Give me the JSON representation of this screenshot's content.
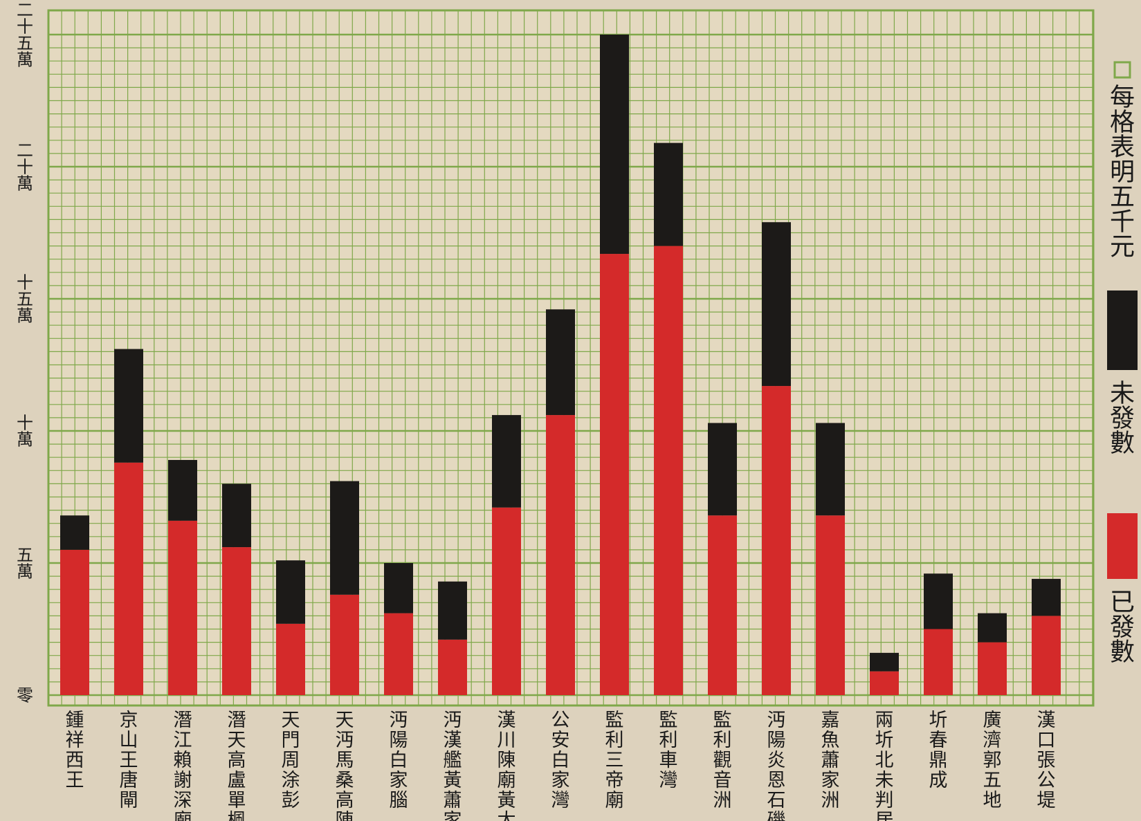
{
  "chart_data": {
    "type": "bar",
    "stacked": true,
    "orientation": "vertical",
    "title": "",
    "xlabel": "",
    "ylabel": "",
    "ylim": [
      0,
      250000
    ],
    "grid": true,
    "y_tick_values": [
      0,
      50000,
      100000,
      150000,
      200000,
      250000
    ],
    "y_tick_labels": [
      "零",
      "五萬",
      "十萬",
      "十五萬",
      "二十萬",
      "二十五萬"
    ],
    "legend_position": "right",
    "legend_note": "每格表明五千元",
    "categories": [
      "鍾祥西王",
      "京山王唐閘",
      "潛江賴謝深廟",
      "潛天高盧單楓",
      "天門周涂彭",
      "天沔馬桑高陳",
      "沔陽白家腦",
      "沔漢艦黃蕭家灣",
      "漢川陳廟黃太",
      "公安白家灣",
      "監利三帝廟",
      "監利車灣",
      "監利觀音洲",
      "沔陽炎恩石磯",
      "嘉魚蕭家洲",
      "兩圻北未判居",
      "圻春鼎成",
      "廣濟郭五地",
      "漢口張公堤"
    ],
    "series": [
      {
        "name": "已發數",
        "color": "#d42a2a",
        "values": [
          55000,
          88000,
          66000,
          56000,
          27000,
          38000,
          31000,
          21000,
          71000,
          106000,
          167000,
          170000,
          68000,
          117000,
          68000,
          9000,
          25000,
          20000,
          30000
        ]
      },
      {
        "name": "未發數",
        "color": "#1c1a18",
        "values": [
          13000,
          43000,
          23000,
          24000,
          24000,
          43000,
          19000,
          22000,
          35000,
          40000,
          83000,
          39000,
          35000,
          62000,
          35000,
          7000,
          21000,
          11000,
          14000
        ]
      }
    ],
    "legend": [
      {
        "label": "每格表明五千元",
        "swatch": "grid-cell",
        "color": "#7fa84a"
      },
      {
        "label": "未發數",
        "swatch": "solid",
        "color": "#1c1a18"
      },
      {
        "label": "已發數",
        "swatch": "solid",
        "color": "#d42a2a"
      }
    ],
    "colors": {
      "grid": "#7fa84a",
      "paper": "#ddd2bd",
      "plot_bg": "#e4d9c0"
    }
  }
}
